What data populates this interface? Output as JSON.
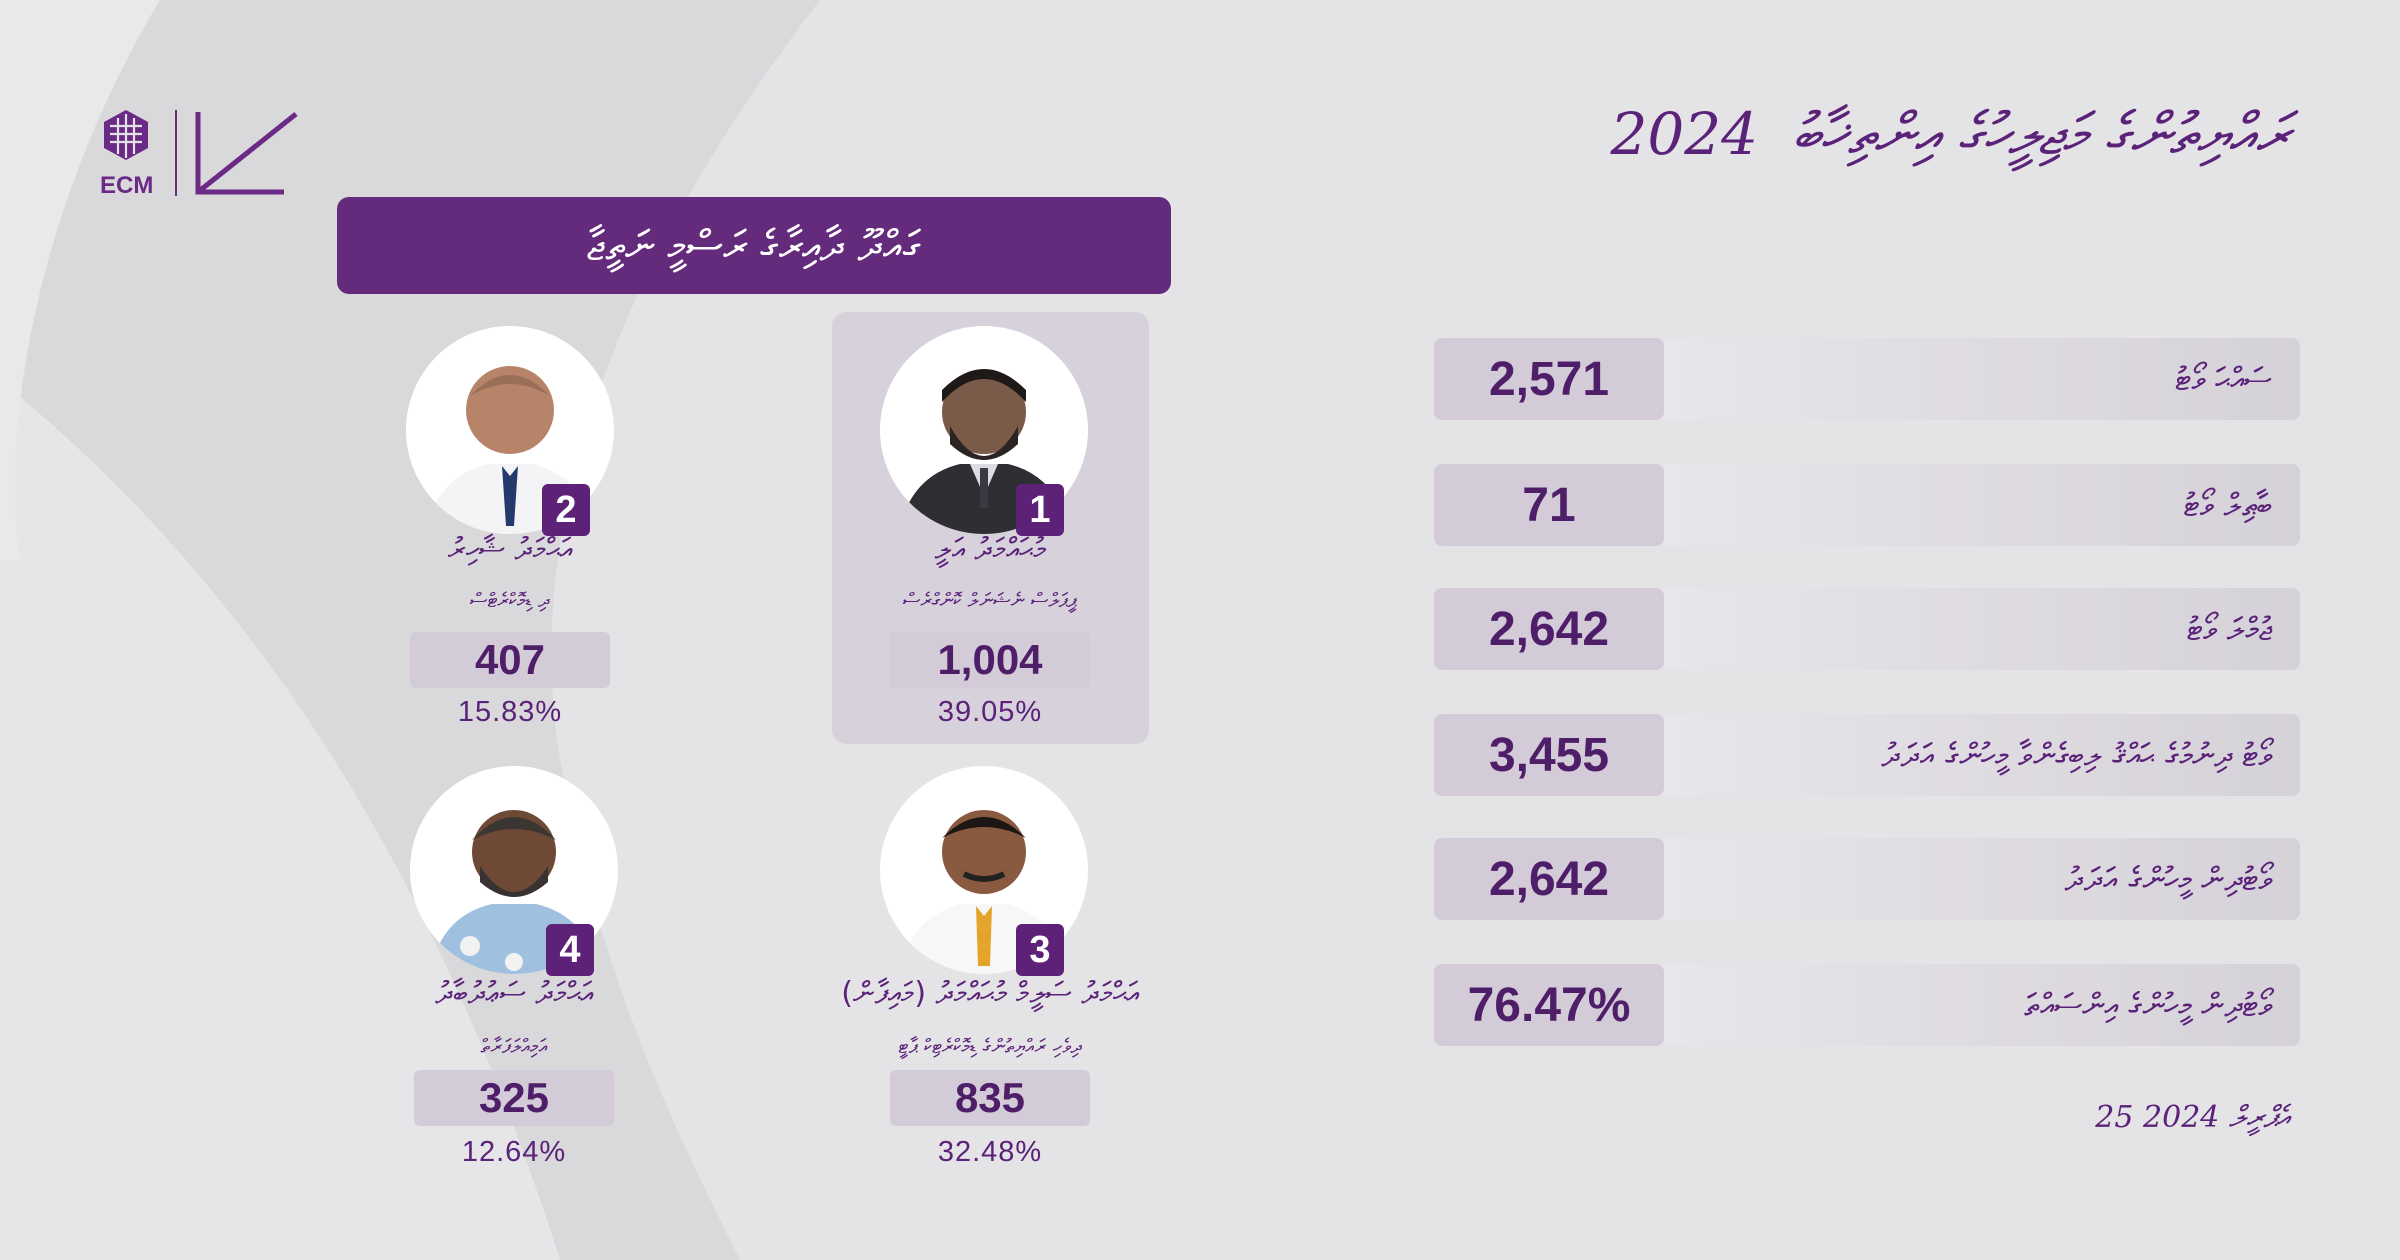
{
  "header": {
    "title_text": "ރައްޔިތުންގެ މަޖިލީހުގެ އިންތިޚާބު",
    "title_year": "2024",
    "logo_text": "ECM",
    "logo_mark": "2024 مجلس"
  },
  "banner": {
    "text": "ގައްދޫ ދާއިރާގެ ރަސްމީ ނަތީޖާ"
  },
  "candidates": [
    {
      "number": "1",
      "name": "މުޙައްމަދު އަލީ",
      "party": "ޕީޕަލްސް ނެޝަނަލް ކޮންގްރެސް",
      "votes": "1,004",
      "percent": "39.05%"
    },
    {
      "number": "2",
      "name": "އަޙްމަދު ޝާހިރު",
      "party": "ދި ޑިމޮކްރެޓްސް",
      "votes": "407",
      "percent": "15.83%"
    },
    {
      "number": "3",
      "name": "އަޙްމަދު ސަލީމް މުޙައްމަދު (މައިފާން)",
      "party": "ދިވެހި ރައްޔިތުންގެ ޑިމޮކްރެޓިކް ޕާޓީ",
      "votes": "835",
      "percent": "32.48%"
    },
    {
      "number": "4",
      "name": "އަޙްމަދު ސަޢުދުބާދު",
      "party": "އަމިއްލަފަރާތް",
      "votes": "325",
      "percent": "12.64%"
    }
  ],
  "stats": [
    {
      "label": "ސައްޙަ ވޯޓު",
      "value": "2,571"
    },
    {
      "label": "ބާޠިލް ވޯޓު",
      "value": "71"
    },
    {
      "label": "ޖުމްލަ ވޯޓު",
      "value": "2,642"
    },
    {
      "label": "ވޯޓު ދިނުމުގެ ޙައްޤު ލިބިގެންވާ މީހުންގެ އަދަދު",
      "value": "3,455"
    },
    {
      "label": "ވޯޓުދިން މީހުންގެ އަދަދު",
      "value": "2,642"
    },
    {
      "label": "ވޯޓުދިން މީހުންގެ އިންސައްތަ",
      "value": "76.47%"
    }
  ],
  "date": "25 އެޕްރީލް 2024",
  "colors": {
    "brand_purple": "#642a7c",
    "box_lilac": "#d3ccd8",
    "background": "#e4e3e6"
  }
}
